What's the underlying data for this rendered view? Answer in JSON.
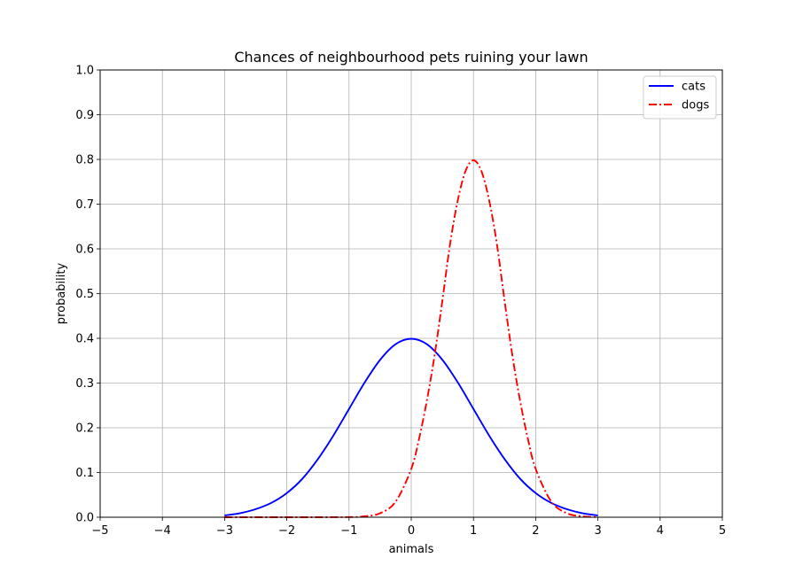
{
  "chart_data": {
    "type": "line",
    "title": "Chances of neighbourhood pets ruining your lawn",
    "xlabel": "animals",
    "ylabel": "probability",
    "xlim": [
      -5,
      5
    ],
    "ylim": [
      0,
      1.0
    ],
    "xticks": [
      -5,
      -4,
      -3,
      -2,
      -1,
      0,
      1,
      2,
      3,
      4,
      5
    ],
    "xtick_labels": [
      "−5",
      "−4",
      "−3",
      "−2",
      "−1",
      "0",
      "1",
      "2",
      "3",
      "4",
      "5"
    ],
    "yticks": [
      0.0,
      0.1,
      0.2,
      0.3,
      0.4,
      0.5,
      0.6,
      0.7,
      0.8,
      0.9,
      1.0
    ],
    "ytick_labels": [
      "0.0",
      "0.1",
      "0.2",
      "0.3",
      "0.4",
      "0.5",
      "0.6",
      "0.7",
      "0.8",
      "0.9",
      "1.0"
    ],
    "grid": true,
    "legend_position": "top-right",
    "series": [
      {
        "name": "cats",
        "color": "#0000ff",
        "linestyle": "solid",
        "x": [
          -3.0,
          -2.75,
          -2.5,
          -2.25,
          -2.0,
          -1.75,
          -1.5,
          -1.25,
          -1.0,
          -0.75,
          -0.5,
          -0.25,
          0.0,
          0.25,
          0.5,
          0.75,
          1.0,
          1.25,
          1.5,
          1.75,
          2.0,
          2.25,
          2.5,
          2.75,
          3.0
        ],
        "y": [
          0.004,
          0.009,
          0.018,
          0.032,
          0.054,
          0.086,
          0.13,
          0.183,
          0.242,
          0.301,
          0.352,
          0.387,
          0.399,
          0.387,
          0.352,
          0.301,
          0.242,
          0.183,
          0.13,
          0.086,
          0.054,
          0.032,
          0.018,
          0.009,
          0.004
        ]
      },
      {
        "name": "dogs",
        "color": "#ff0000",
        "linestyle": "dashdot",
        "x": [
          -3.0,
          -2.5,
          -2.0,
          -1.5,
          -1.0,
          -0.75,
          -0.5,
          -0.25,
          0.0,
          0.125,
          0.25,
          0.375,
          0.5,
          0.625,
          0.75,
          0.875,
          1.0,
          1.125,
          1.25,
          1.375,
          1.5,
          1.625,
          1.75,
          1.875,
          2.0,
          2.25,
          2.5,
          2.75,
          3.0
        ],
        "y": [
          0.0,
          0.0,
          0.0,
          0.0,
          0.0003,
          0.002,
          0.009,
          0.035,
          0.108,
          0.175,
          0.26,
          0.362,
          0.484,
          0.612,
          0.71,
          0.775,
          0.798,
          0.775,
          0.71,
          0.612,
          0.484,
          0.362,
          0.26,
          0.175,
          0.108,
          0.035,
          0.009,
          0.002,
          0.0003
        ]
      }
    ]
  }
}
